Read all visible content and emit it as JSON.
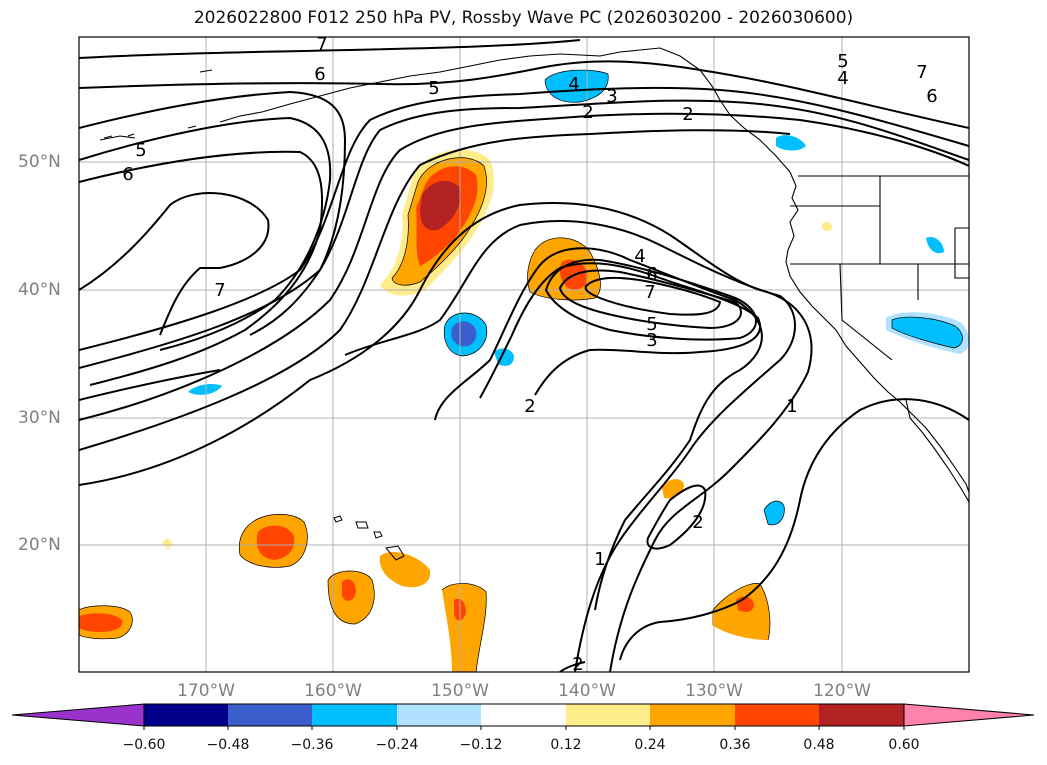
{
  "title": "2026022800 F012 250 hPa PV, Rossby Wave PC (2026030200 - 2026030600)",
  "lat_labels": [
    "50°N",
    "40°N",
    "30°N",
    "20°N"
  ],
  "lon_labels": [
    "170°W",
    "160°W",
    "150°W",
    "140°W",
    "130°W",
    "120°W"
  ],
  "colorbar": {
    "ticks": [
      "−0.60",
      "−0.48",
      "−0.36",
      "−0.24",
      "−0.12",
      "0.12",
      "0.24",
      "0.36",
      "0.48",
      "0.60"
    ],
    "colors": [
      "#9933cc",
      "#00008b",
      "#3a5fcd",
      "#00bfff",
      "#b0e2ff",
      "#ffffff",
      "#ffec8b",
      "#ffa500",
      "#ff4500",
      "#b22222",
      "#ff82ab"
    ]
  },
  "contour_labels": [
    "6",
    "5",
    "5",
    "6",
    "7",
    "4",
    "3",
    "2",
    "4",
    "6",
    "7",
    "5",
    "3",
    "2",
    "2",
    "1",
    "1",
    "2",
    "5",
    "4",
    "7",
    "6",
    "2",
    "7"
  ]
}
